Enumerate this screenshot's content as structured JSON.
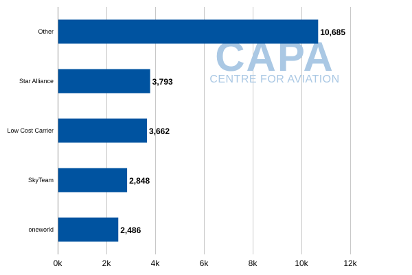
{
  "chart_data": {
    "type": "bar",
    "orientation": "horizontal",
    "categories": [
      "Other",
      "Star Alliance",
      "Low Cost Carrier",
      "SkyTeam",
      "oneworld"
    ],
    "values": [
      10685,
      3793,
      3662,
      2848,
      2486
    ],
    "value_labels": [
      "10,685",
      "3,793",
      "3,662",
      "2,848",
      "2,486"
    ],
    "xlim": [
      0,
      12000
    ],
    "x_ticks": [
      0,
      2000,
      4000,
      6000,
      8000,
      10000,
      12000
    ],
    "x_tick_labels": [
      "0k",
      "2k",
      "4k",
      "6k",
      "8k",
      "10k",
      "12k"
    ],
    "grid": true,
    "bar_color": "#0053a0"
  },
  "watermark": {
    "main": "CAPA",
    "sub": "CENTRE FOR AVIATION",
    "color": "#aac8e4"
  }
}
